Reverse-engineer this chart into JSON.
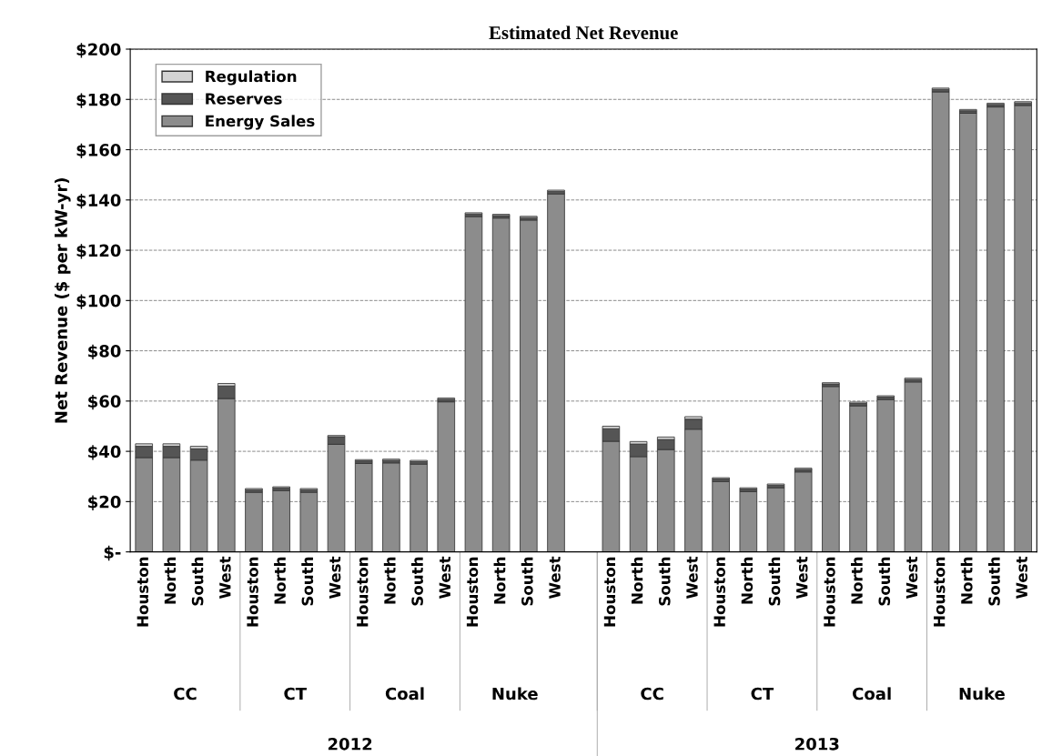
{
  "chart_data": {
    "type": "bar",
    "stacked": true,
    "title": "Estimated Net Revenue",
    "ylabel": "Net Revenue ($ per kW-yr)",
    "categories": [
      "Houston",
      "North",
      "South",
      "West",
      "Houston",
      "North",
      "South",
      "West",
      "Houston",
      "North",
      "South",
      "West",
      "Houston",
      "North",
      "South",
      "West",
      null,
      "Houston",
      "North",
      "South",
      "West",
      "Houston",
      "North",
      "South",
      "West",
      "Houston",
      "North",
      "South",
      "West",
      "Houston",
      "North",
      "South",
      "West"
    ],
    "series": [
      {
        "name": "Energy Sales",
        "color": "#8c8c8c",
        "values": [
          37.5,
          37.5,
          36.5,
          61,
          23.7,
          24.4,
          23.7,
          42.8,
          35.2,
          35.4,
          34.9,
          59.7,
          133.4,
          132.8,
          132,
          142.4,
          null,
          44,
          37.9,
          40.7,
          48.8,
          28,
          24,
          25.5,
          31.8,
          65.8,
          58.1,
          60.6,
          67.6,
          183,
          174.5,
          177,
          177.6
        ]
      },
      {
        "name": "Reserves",
        "color": "#555555",
        "values": [
          4.5,
          4.5,
          4.5,
          5,
          1,
          1,
          1,
          3,
          1,
          1,
          1,
          1,
          1,
          1,
          1,
          1,
          null,
          5,
          5,
          4,
          4,
          1,
          1,
          1,
          1,
          1,
          1,
          1,
          1,
          1,
          1,
          1,
          1
        ]
      },
      {
        "name": "Regulation",
        "color": "#d4d4d4",
        "values": [
          1,
          1,
          1,
          1,
          0.5,
          0.5,
          0.5,
          0.5,
          0.5,
          0.5,
          0.5,
          0.5,
          0.5,
          0.5,
          0.5,
          0.5,
          null,
          1,
          1,
          1,
          1,
          0.5,
          0.5,
          0.5,
          0.5,
          0.5,
          0.5,
          0.5,
          0.5,
          0.5,
          0.5,
          0.5,
          0.5
        ]
      }
    ],
    "ylim": [
      0,
      200
    ],
    "yticks": [
      {
        "value": 0,
        "label": "$-"
      },
      {
        "value": 20,
        "label": "$20"
      },
      {
        "value": 40,
        "label": "$40"
      },
      {
        "value": 60,
        "label": "$60"
      },
      {
        "value": 80,
        "label": "$80"
      },
      {
        "value": 100,
        "label": "$100"
      },
      {
        "value": 120,
        "label": "$120"
      },
      {
        "value": 140,
        "label": "$140"
      },
      {
        "value": 160,
        "label": "$160"
      },
      {
        "value": 180,
        "label": "$180"
      },
      {
        "value": 200,
        "label": "$200"
      }
    ],
    "grid": "y",
    "legend": "top left",
    "annotations": [
      "CC",
      "CT",
      "Coal",
      "Nuke",
      "CC",
      "CT",
      "Coal",
      "Nuke",
      "2012",
      "2013"
    ]
  }
}
